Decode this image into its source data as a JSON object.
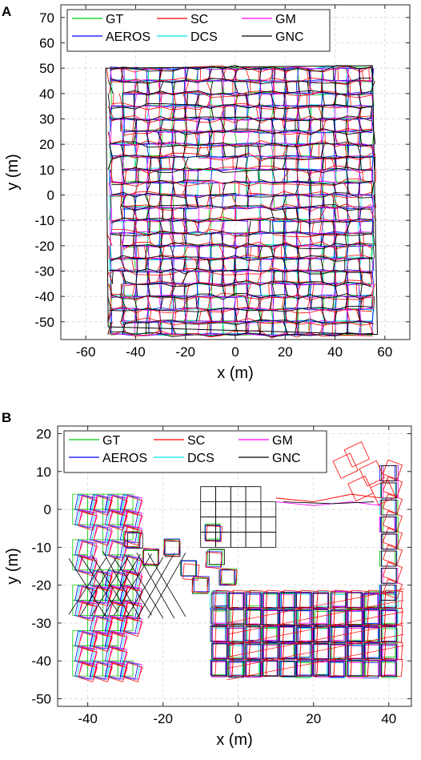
{
  "panels": [
    {
      "letter": "A"
    },
    {
      "letter": "B"
    }
  ],
  "chart_data": [
    {
      "type": "line",
      "panel": "A",
      "xlabel": "x (m)",
      "ylabel": "y (m)",
      "xlim": [
        -70,
        70
      ],
      "ylim": [
        -57,
        75
      ],
      "xticks": [
        -60,
        -40,
        -20,
        0,
        20,
        40,
        60
      ],
      "yticks": [
        -50,
        -40,
        -30,
        -20,
        -10,
        0,
        10,
        20,
        30,
        40,
        50,
        60,
        70
      ],
      "grid": true,
      "legend_position": "top-left",
      "legend_columns": 3,
      "series": [
        {
          "name": "GT",
          "color": "#00cc00"
        },
        {
          "name": "SC",
          "color": "#ff0000"
        },
        {
          "name": "GM",
          "color": "#ff00ff"
        },
        {
          "name": "AEROS",
          "color": "#0000ff"
        },
        {
          "name": "DCS",
          "color": "#00e5e5"
        },
        {
          "name": "GNC",
          "color": "#000000"
        }
      ],
      "note": "dense overlapping trajectories on grid from x -50..55, y -55..50"
    },
    {
      "type": "line",
      "panel": "B",
      "xlabel": "x (m)",
      "ylabel": "y (m)",
      "xlim": [
        -48,
        46
      ],
      "ylim": [
        -52,
        22
      ],
      "xticks": [
        -40,
        -20,
        0,
        20,
        40
      ],
      "yticks": [
        -50,
        -40,
        -30,
        -20,
        -10,
        0,
        10,
        20
      ],
      "grid": true,
      "legend_position": "top-left",
      "legend_columns": 3,
      "series": [
        {
          "name": "GT",
          "color": "#00cc00"
        },
        {
          "name": "SC",
          "color": "#ff0000"
        },
        {
          "name": "GM",
          "color": "#ff00ff"
        },
        {
          "name": "AEROS",
          "color": "#0000ff"
        },
        {
          "name": "DCS",
          "color": "#00e5e5"
        },
        {
          "name": "GNC",
          "color": "#000000"
        }
      ]
    }
  ]
}
